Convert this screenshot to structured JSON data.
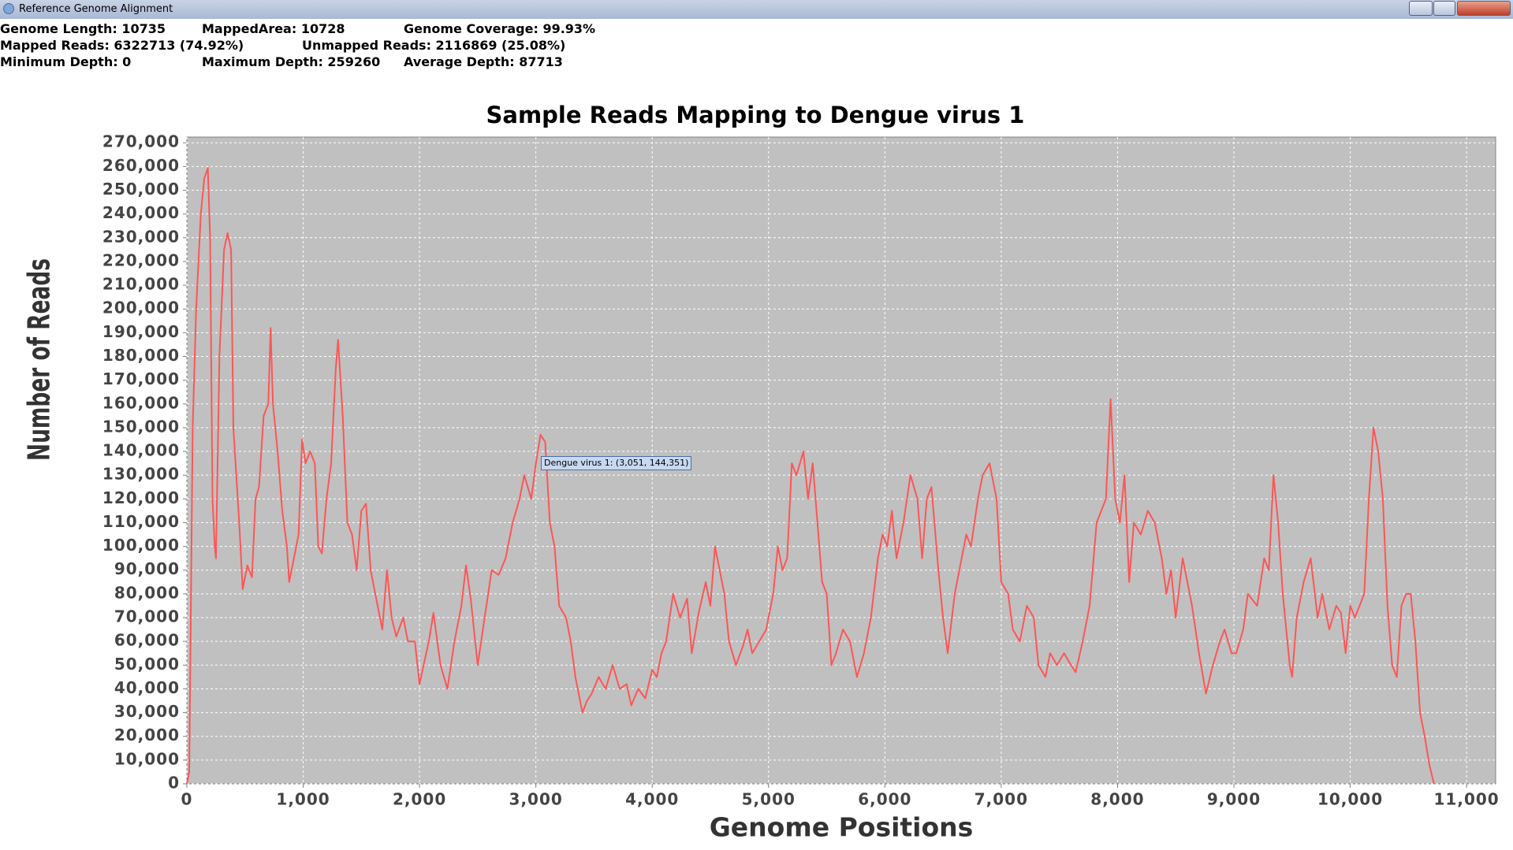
{
  "window": {
    "title": "Reference Genome Alignment"
  },
  "info": [
    [
      "Genome Length: 10735",
      "MappedArea: 10728",
      "Genome Coverage: 99.93%"
    ],
    [
      "Mapped Reads: 6322713 (74.92%)",
      "Unmapped Reads: 2116869 (25.08%)"
    ],
    [
      "Minimum Depth: 0",
      "Maximum Depth: 259260",
      "Average Depth: 87713"
    ]
  ],
  "chart_data": {
    "type": "line",
    "title": "Sample Reads Mapping to Dengue virus 1",
    "x_label": "Genome Positions",
    "y_label": "Number of Reads",
    "tooltip": "Dengue virus 1: (3,051, 144,351)",
    "grid": true,
    "xlim": [
      0,
      11250
    ],
    "ylim": [
      0,
      272400
    ],
    "xticks": [
      0,
      {
        "value": 1000,
        "label": "1,000"
      },
      {
        "value": 2000,
        "label": "2,000"
      },
      {
        "value": 3000,
        "label": "3,000"
      },
      {
        "value": 4000,
        "label": "4,000"
      },
      {
        "value": 5000,
        "label": "5,000"
      },
      {
        "value": 6000,
        "label": "6,000"
      },
      {
        "value": 7000,
        "label": "7,000"
      },
      {
        "value": 8000,
        "label": "8,000"
      },
      {
        "value": 9000,
        "label": "9,000"
      },
      {
        "value": 10000,
        "label": "10,000"
      },
      {
        "value": 11000,
        "label": "11,000"
      }
    ],
    "yticks": [
      0,
      {
        "value": 10000,
        "label": "10,000"
      },
      {
        "value": 20000,
        "label": "20,000"
      },
      {
        "value": 30000,
        "label": "30,000"
      },
      {
        "value": 40000,
        "label": "40,000"
      },
      {
        "value": 50000,
        "label": "50,000"
      },
      {
        "value": 60000,
        "label": "60,000"
      },
      {
        "value": 70000,
        "label": "70,000"
      },
      {
        "value": 80000,
        "label": "80,000"
      },
      {
        "value": 90000,
        "label": "90,000"
      },
      {
        "value": 100000,
        "label": "100,000"
      },
      {
        "value": 110000,
        "label": "110,000"
      },
      {
        "value": 120000,
        "label": "120,000"
      },
      {
        "value": 130000,
        "label": "130,000"
      },
      {
        "value": 140000,
        "label": "140,000"
      },
      {
        "value": 150000,
        "label": "150,000"
      },
      {
        "value": 160000,
        "label": "160,000"
      },
      {
        "value": 170000,
        "label": "170,000"
      },
      {
        "value": 180000,
        "label": "180,000"
      },
      {
        "value": 190000,
        "label": "190,000"
      },
      {
        "value": 200000,
        "label": "200,000"
      },
      {
        "value": 210000,
        "label": "210,000"
      },
      {
        "value": 220000,
        "label": "220,000"
      },
      {
        "value": 230000,
        "label": "230,000"
      },
      {
        "value": 240000,
        "label": "240,000"
      },
      {
        "value": 250000,
        "label": "250,000"
      },
      {
        "value": 260000,
        "label": "260,000"
      },
      {
        "value": 270000,
        "label": "270,000"
      }
    ],
    "x": [
      0,
      20,
      50,
      80,
      120,
      150,
      180,
      200,
      220,
      240,
      250,
      280,
      320,
      350,
      380,
      400,
      450,
      480,
      520,
      560,
      590,
      620,
      660,
      700,
      720,
      740,
      780,
      820,
      860,
      880,
      920,
      960,
      990,
      1020,
      1060,
      1100,
      1130,
      1160,
      1200,
      1240,
      1280,
      1300,
      1340,
      1380,
      1420,
      1460,
      1500,
      1540,
      1580,
      1620,
      1680,
      1720,
      1760,
      1800,
      1860,
      1900,
      1960,
      2000,
      2080,
      2120,
      2180,
      2240,
      2300,
      2360,
      2400,
      2440,
      2500,
      2560,
      2620,
      2680,
      2740,
      2800,
      2860,
      2900,
      2960,
      3000,
      3040,
      3080,
      3120,
      3160,
      3200,
      3260,
      3300,
      3340,
      3400,
      3440,
      3480,
      3540,
      3600,
      3660,
      3720,
      3780,
      3820,
      3880,
      3940,
      4000,
      4040,
      4080,
      4120,
      4180,
      4240,
      4300,
      4340,
      4400,
      4460,
      4500,
      4540,
      4580,
      4620,
      4660,
      4720,
      4780,
      4820,
      4860,
      4920,
      4980,
      5040,
      5080,
      5120,
      5160,
      5200,
      5240,
      5300,
      5340,
      5380,
      5420,
      5460,
      5500,
      5540,
      5580,
      5640,
      5700,
      5760,
      5820,
      5880,
      5940,
      5980,
      6020,
      6060,
      6100,
      6160,
      6220,
      6280,
      6320,
      6360,
      6400,
      6460,
      6500,
      6540,
      6600,
      6660,
      6700,
      6740,
      6800,
      6840,
      6900,
      6960,
      7000,
      7060,
      7100,
      7160,
      7220,
      7280,
      7320,
      7380,
      7420,
      7480,
      7540,
      7600,
      7640,
      7700,
      7760,
      7820,
      7860,
      7900,
      7940,
      7980,
      8020,
      8060,
      8100,
      8140,
      8200,
      8260,
      8320,
      8380,
      8420,
      8460,
      8500,
      8560,
      8600,
      8640,
      8700,
      8760,
      8820,
      8880,
      8920,
      8980,
      9020,
      9080,
      9120,
      9200,
      9260,
      9300,
      9340,
      9380,
      9420,
      9480,
      9500,
      9540,
      9600,
      9660,
      9720,
      9760,
      9820,
      9880,
      9920,
      9960,
      10000,
      10040,
      10080,
      10120,
      10160,
      10200,
      10240,
      10280,
      10320,
      10360,
      10400,
      10440,
      10480,
      10520,
      10560,
      10600,
      10640,
      10680,
      10720
    ],
    "series": [
      {
        "color": "#ff5555",
        "values": [
          0,
          5000,
          150000,
          200000,
          240000,
          255000,
          259260,
          230000,
          120000,
          100000,
          95000,
          180000,
          225000,
          232000,
          225000,
          150000,
          110000,
          82000,
          92000,
          87000,
          120000,
          125000,
          155000,
          160000,
          192000,
          160000,
          140000,
          115000,
          100000,
          85000,
          95000,
          105000,
          145000,
          135000,
          140000,
          135000,
          100000,
          97000,
          120000,
          135000,
          175000,
          187000,
          155000,
          110000,
          105000,
          90000,
          115000,
          118000,
          90000,
          80000,
          65000,
          90000,
          70000,
          62000,
          70000,
          60000,
          60000,
          42000,
          60000,
          72000,
          50000,
          40000,
          60000,
          75000,
          92000,
          78000,
          50000,
          70000,
          90000,
          88000,
          95000,
          110000,
          120000,
          130000,
          120000,
          135000,
          147000,
          144000,
          110000,
          100000,
          75000,
          70000,
          60000,
          45000,
          30000,
          35000,
          38000,
          45000,
          40000,
          50000,
          40000,
          42000,
          33000,
          40000,
          36000,
          48000,
          45000,
          55000,
          60000,
          80000,
          70000,
          78000,
          55000,
          72000,
          85000,
          75000,
          100000,
          90000,
          80000,
          60000,
          50000,
          58000,
          65000,
          55000,
          60000,
          65000,
          80000,
          100000,
          90000,
          95000,
          135000,
          130000,
          140000,
          120000,
          135000,
          110000,
          85000,
          80000,
          50000,
          55000,
          65000,
          60000,
          45000,
          55000,
          70000,
          95000,
          105000,
          100000,
          115000,
          95000,
          110000,
          130000,
          120000,
          95000,
          120000,
          125000,
          90000,
          70000,
          55000,
          80000,
          95000,
          105000,
          100000,
          120000,
          130000,
          135000,
          120000,
          85000,
          80000,
          65000,
          60000,
          75000,
          70000,
          50000,
          45000,
          55000,
          50000,
          55000,
          50000,
          47000,
          60000,
          75000,
          110000,
          115000,
          120000,
          162000,
          120000,
          110000,
          130000,
          85000,
          110000,
          105000,
          115000,
          110000,
          95000,
          80000,
          90000,
          70000,
          95000,
          85000,
          75000,
          55000,
          38000,
          50000,
          60000,
          65000,
          55000,
          55000,
          65000,
          80000,
          75000,
          95000,
          90000,
          130000,
          110000,
          80000,
          50000,
          45000,
          70000,
          85000,
          95000,
          70000,
          80000,
          65000,
          75000,
          72000,
          55000,
          75000,
          70000,
          75000,
          80000,
          120000,
          150000,
          140000,
          120000,
          75000,
          50000,
          45000,
          75000,
          80000,
          80000,
          60000,
          30000,
          20000,
          8000,
          0
        ]
      }
    ]
  }
}
